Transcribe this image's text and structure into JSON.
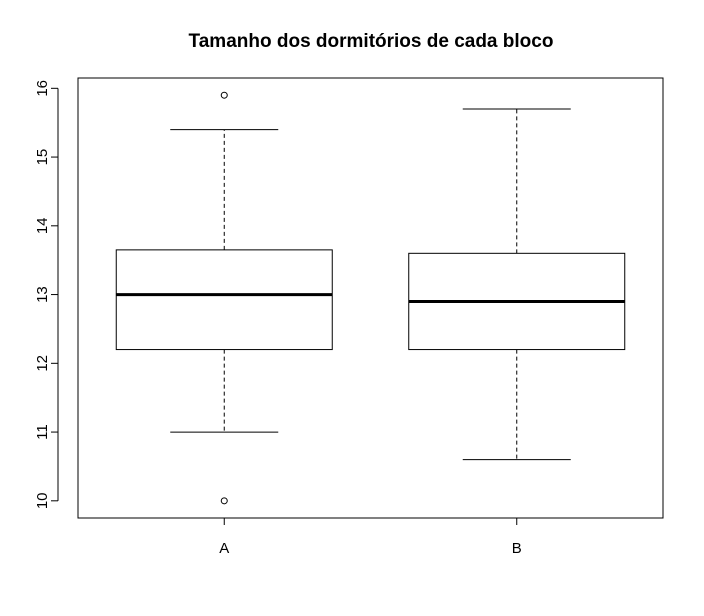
{
  "chart_data": {
    "type": "boxplot",
    "title": "Tamanho dos dormitórios de cada bloco",
    "xlabel": "",
    "ylabel": "",
    "ylim": [
      9.75,
      16.15
    ],
    "yticks": [
      "10",
      "11",
      "12",
      "13",
      "14",
      "15",
      "16"
    ],
    "categories": [
      "A",
      "B"
    ],
    "boxes": [
      {
        "category": "A",
        "whisker_low": 11.0,
        "q1": 12.2,
        "median": 13.0,
        "q3": 13.65,
        "whisker_high": 15.4,
        "outliers": [
          15.9,
          10.0
        ]
      },
      {
        "category": "B",
        "whisker_low": 10.6,
        "q1": 12.2,
        "median": 12.9,
        "q3": 13.6,
        "whisker_high": 15.7,
        "outliers": []
      }
    ],
    "grid": false,
    "legend": "none"
  }
}
